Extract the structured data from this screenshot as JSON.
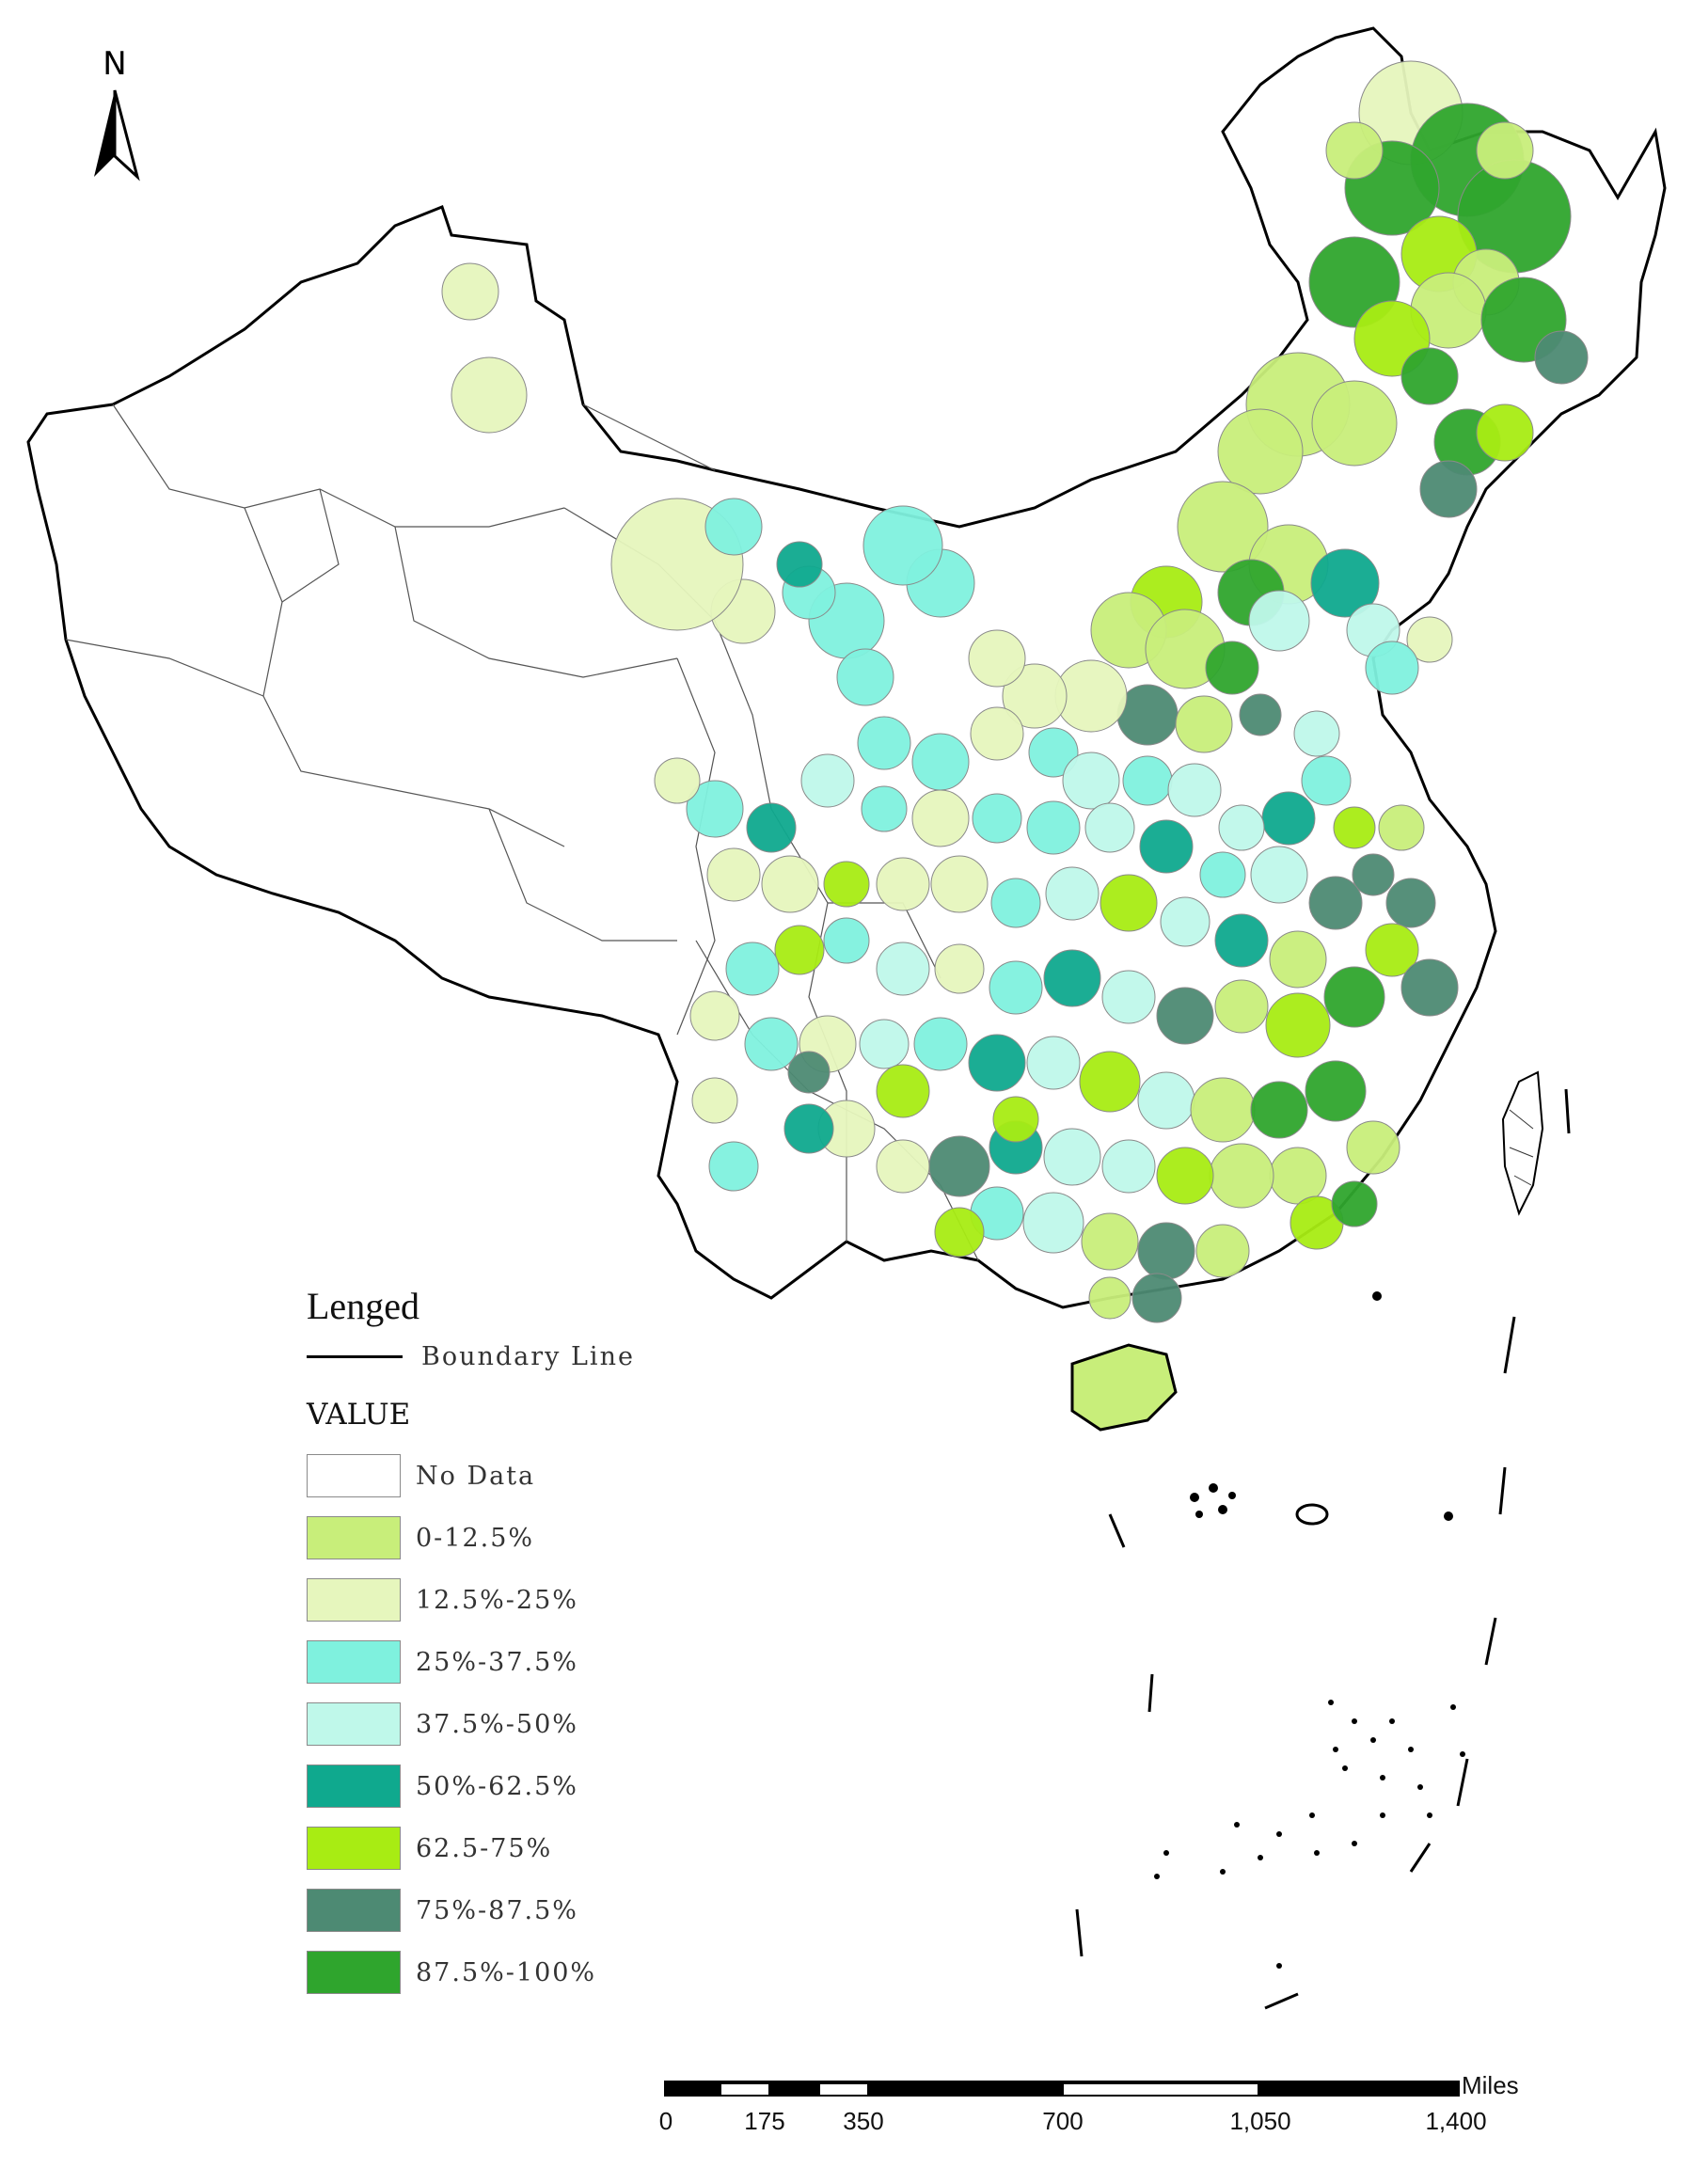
{
  "north_arrow": {
    "label": "N"
  },
  "legend": {
    "title": "Lenged",
    "boundary_label": "Boundary Line",
    "value_title": "VALUE",
    "classes": [
      {
        "label": "No Data",
        "color": "#ffffff"
      },
      {
        "label": "0-12.5%",
        "color": "#c8ee7a"
      },
      {
        "label": "12.5%-25%",
        "color": "#e6f6bd"
      },
      {
        "label": "25%-37.5%",
        "color": "#7ff1de"
      },
      {
        "label": "37.5%-50%",
        "color": "#bff8ea"
      },
      {
        "label": "50%-62.5%",
        "color": "#0fa98e"
      },
      {
        "label": "62.5-75%",
        "color": "#a8ec13"
      },
      {
        "label": "75%-87.5%",
        "color": "#4d8a73"
      },
      {
        "label": "87.5%-100%",
        "color": "#2fa52d"
      }
    ]
  },
  "scale_bar": {
    "unit": "Miles",
    "ticks": [
      "0",
      "175",
      "350",
      "700",
      "1,050",
      "1,400"
    ]
  }
}
